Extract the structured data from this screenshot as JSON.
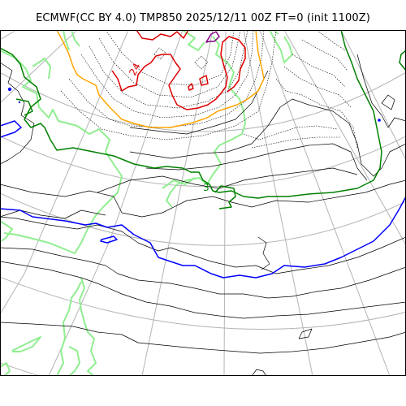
{
  "title": "ECMWF(CC BY 4.0) TMP850 2025/12/11 00Z FT=0 (init 1100Z)",
  "contour_labels": [
    {
      "text": "24",
      "color": "#dd0000"
    },
    {
      "text": "3",
      "color": "#008000"
    }
  ],
  "colors": {
    "graticule": "#b4b4b4",
    "coastline": "#90ee90",
    "thin_isotherm": "#000000",
    "blue_isotherm": "#0000ff",
    "green_isotherm": "#008000",
    "orange_isotherm": "#ffa500",
    "red_isotherm": "#dd0000",
    "purple_isotherm": "#800080"
  }
}
